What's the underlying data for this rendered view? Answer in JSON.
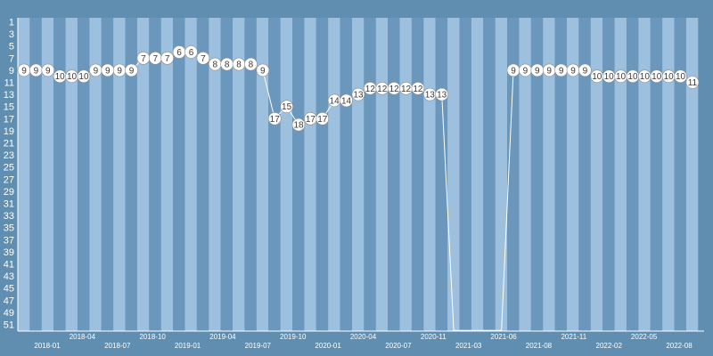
{
  "chart_data": {
    "type": "line",
    "y_axis": {
      "inverted": true,
      "range": [
        1,
        52
      ],
      "tick_labels": [
        "1",
        "3",
        "5",
        "7",
        "9",
        "11",
        "13",
        "15",
        "17",
        "19",
        "21",
        "23",
        "25",
        "27",
        "29",
        "31",
        "33",
        "35",
        "37",
        "39",
        "41",
        "43",
        "45",
        "47",
        "49",
        "51"
      ]
    },
    "x_tick_labels": [
      "2018-01",
      "2018-04",
      "2018-07",
      "2018-10",
      "2019-01",
      "2019-04",
      "2019-07",
      "2019-10",
      "2020-01",
      "2020-04",
      "2020-07",
      "2020-11",
      "2021-03",
      "2021-06",
      "2021-08",
      "2021-11",
      "2022-02",
      "2022-05",
      "2022-08"
    ],
    "grid": "alternating vertical bands",
    "colors": {
      "background": "#5f8eb0",
      "band_light": "#9cc0de",
      "band_dark": "#6a97bb",
      "line": "#ffffff",
      "marker_fill": "#ffffff"
    },
    "values": [
      9,
      9,
      9,
      10,
      10,
      10,
      9,
      9,
      9,
      9,
      7,
      7,
      7,
      6,
      6,
      7,
      8,
      8,
      8,
      8,
      9,
      17,
      15,
      18,
      17,
      17,
      14,
      14,
      13,
      12,
      12,
      12,
      12,
      12,
      13,
      13,
      52,
      52,
      52,
      52,
      52,
      9,
      9,
      9,
      9,
      9,
      9,
      9,
      10,
      10,
      10,
      10,
      10,
      10,
      10,
      10,
      11
    ],
    "data_labels": [
      "9",
      "9",
      "9",
      "10",
      "10",
      "10",
      "9",
      "9",
      "9",
      "9",
      "7",
      "7",
      "7",
      "6",
      "6",
      "7",
      "8",
      "8",
      "8",
      "8",
      "9",
      "17",
      "15",
      "18",
      "17",
      "17",
      "14",
      "14",
      "13",
      "12",
      "12",
      "12",
      "12",
      "12",
      "13",
      "13",
      "",
      "",
      "",
      "",
      "",
      "9",
      "9",
      "9",
      "9",
      "9",
      "9",
      "9",
      "10",
      "10",
      "10",
      "10",
      "10",
      "10",
      "10",
      "10",
      "11"
    ]
  }
}
